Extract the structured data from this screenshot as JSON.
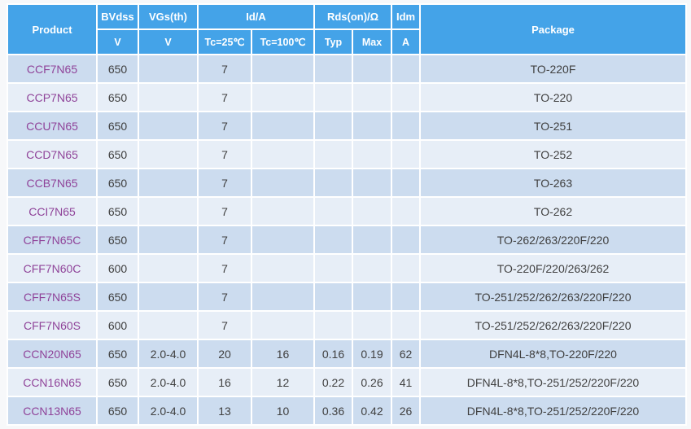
{
  "table": {
    "header": {
      "product": "Product",
      "bvdss": "BVdss",
      "bvdss_unit": "V",
      "vgsth": "VGs(th)",
      "vgsth_unit": "V",
      "id_group": "Id/A",
      "id_tc25": "Tc=25℃",
      "id_tc100": "Tc=100℃",
      "rds_group": "Rds(on)/Ω",
      "rds_typ": "Typ",
      "rds_max": "Max",
      "idm": "Idm",
      "idm_unit": "A",
      "package": "Package"
    },
    "rows": [
      {
        "product": "CCF7N65",
        "bvdss": "650",
        "vgsth": "",
        "id25": "7",
        "id100": "",
        "typ": "",
        "max": "",
        "idm": "",
        "package": "TO-220F"
      },
      {
        "product": "CCP7N65",
        "bvdss": "650",
        "vgsth": "",
        "id25": "7",
        "id100": "",
        "typ": "",
        "max": "",
        "idm": "",
        "package": "TO-220"
      },
      {
        "product": "CCU7N65",
        "bvdss": "650",
        "vgsth": "",
        "id25": "7",
        "id100": "",
        "typ": "",
        "max": "",
        "idm": "",
        "package": "TO-251"
      },
      {
        "product": "CCD7N65",
        "bvdss": "650",
        "vgsth": "",
        "id25": "7",
        "id100": "",
        "typ": "",
        "max": "",
        "idm": "",
        "package": "TO-252"
      },
      {
        "product": "CCB7N65",
        "bvdss": "650",
        "vgsth": "",
        "id25": "7",
        "id100": "",
        "typ": "",
        "max": "",
        "idm": "",
        "package": "TO-263"
      },
      {
        "product": "CCI7N65",
        "bvdss": "650",
        "vgsth": "",
        "id25": "7",
        "id100": "",
        "typ": "",
        "max": "",
        "idm": "",
        "package": "TO-262"
      },
      {
        "product": "CFF7N65C",
        "bvdss": "650",
        "vgsth": "",
        "id25": "7",
        "id100": "",
        "typ": "",
        "max": "",
        "idm": "",
        "package": "TO-262/263/220F/220"
      },
      {
        "product": "CFF7N60C",
        "bvdss": "600",
        "vgsth": "",
        "id25": "7",
        "id100": "",
        "typ": "",
        "max": "",
        "idm": "",
        "package": "TO-220F/220/263/262"
      },
      {
        "product": "CFF7N65S",
        "bvdss": "650",
        "vgsth": "",
        "id25": "7",
        "id100": "",
        "typ": "",
        "max": "",
        "idm": "",
        "package": "TO-251/252/262/263/220F/220"
      },
      {
        "product": "CFF7N60S",
        "bvdss": "600",
        "vgsth": "",
        "id25": "7",
        "id100": "",
        "typ": "",
        "max": "",
        "idm": "",
        "package": "TO-251/252/262/263/220F/220"
      },
      {
        "product": "CCN20N65",
        "bvdss": "650",
        "vgsth": "2.0-4.0",
        "id25": "20",
        "id100": "16",
        "typ": "0.16",
        "max": "0.19",
        "idm": "62",
        "package": "DFN4L-8*8,TO-220F/220"
      },
      {
        "product": "CCN16N65",
        "bvdss": "650",
        "vgsth": "2.0-4.0",
        "id25": "16",
        "id100": "12",
        "typ": "0.22",
        "max": "0.26",
        "idm": "41",
        "package": "DFN4L-8*8,TO-251/252/220F/220"
      },
      {
        "product": "CCN13N65",
        "bvdss": "650",
        "vgsth": "2.0-4.0",
        "id25": "13",
        "id100": "10",
        "typ": "0.36",
        "max": "0.42",
        "idm": "26",
        "package": "DFN4L-8*8,TO-251/252/220F/220"
      }
    ]
  },
  "colors": {
    "header_bg": "#44a3e8",
    "row_dark": "#ccdcef",
    "row_light": "#e7eef7",
    "grid": "#ffffff",
    "product_link": "#8f4399",
    "body_text": "#404040",
    "page_bg": "#f7f8fa"
  }
}
